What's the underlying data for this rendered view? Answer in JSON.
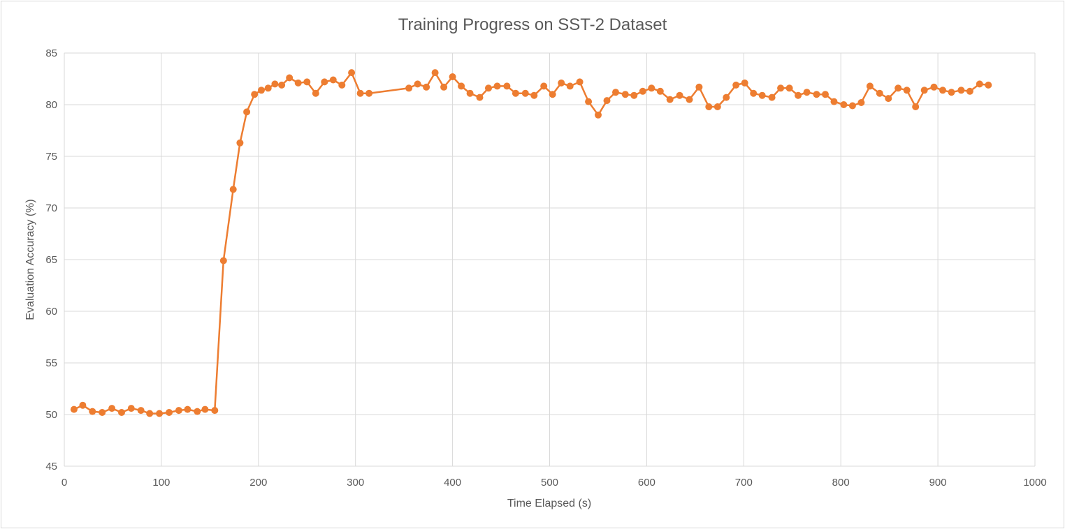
{
  "chart_data": {
    "type": "line",
    "title": "Training Progress on SST-2 Dataset",
    "xlabel": "Time Elapsed (s)",
    "ylabel": "Evaluation Accuracy (%)",
    "xlim": [
      0,
      1000
    ],
    "ylim": [
      45,
      85
    ],
    "xticks": [
      0,
      100,
      200,
      300,
      400,
      500,
      600,
      700,
      800,
      900,
      1000
    ],
    "yticks": [
      45,
      50,
      55,
      60,
      65,
      70,
      75,
      80,
      85
    ],
    "grid": true,
    "legend": "none",
    "colors": {
      "series": "#ed7d31",
      "grid": "#d9d9d9",
      "text": "#595959"
    },
    "series": [
      {
        "points": [
          [
            10,
            50.5
          ],
          [
            19,
            50.9
          ],
          [
            29,
            50.3
          ],
          [
            39,
            50.2
          ],
          [
            49,
            50.6
          ],
          [
            59,
            50.2
          ],
          [
            69,
            50.6
          ],
          [
            79,
            50.4
          ],
          [
            88,
            50.1
          ],
          [
            98,
            50.1
          ],
          [
            108,
            50.2
          ],
          [
            118,
            50.4
          ],
          [
            127,
            50.5
          ],
          [
            137,
            50.3
          ],
          [
            145,
            50.5
          ],
          [
            155,
            50.4
          ],
          [
            164,
            64.9
          ],
          [
            174,
            71.8
          ],
          [
            181,
            76.3
          ],
          [
            188,
            79.3
          ],
          [
            196,
            81.0
          ],
          [
            203,
            81.4
          ],
          [
            210,
            81.6
          ],
          [
            217,
            82.0
          ],
          [
            224,
            81.9
          ],
          [
            232,
            82.6
          ],
          [
            241,
            82.1
          ],
          [
            250,
            82.2
          ],
          [
            259,
            81.1
          ],
          [
            268,
            82.2
          ],
          [
            277,
            82.4
          ],
          [
            286,
            81.9
          ],
          [
            296,
            83.1
          ],
          [
            305,
            81.1
          ],
          [
            314,
            81.1
          ],
          [
            355,
            81.6
          ],
          [
            364,
            82.0
          ],
          [
            373,
            81.7
          ],
          [
            382,
            83.1
          ],
          [
            391,
            81.7
          ],
          [
            400,
            82.7
          ],
          [
            409,
            81.8
          ],
          [
            418,
            81.1
          ],
          [
            428,
            80.7
          ],
          [
            437,
            81.6
          ],
          [
            446,
            81.8
          ],
          [
            456,
            81.8
          ],
          [
            465,
            81.1
          ],
          [
            475,
            81.1
          ],
          [
            484,
            80.9
          ],
          [
            494,
            81.8
          ],
          [
            503,
            81.0
          ],
          [
            512,
            82.1
          ],
          [
            521,
            81.8
          ],
          [
            531,
            82.2
          ],
          [
            540,
            80.3
          ],
          [
            550,
            79.0
          ],
          [
            559,
            80.4
          ],
          [
            568,
            81.2
          ],
          [
            578,
            81.0
          ],
          [
            587,
            80.9
          ],
          [
            596,
            81.3
          ],
          [
            605,
            81.6
          ],
          [
            614,
            81.3
          ],
          [
            624,
            80.5
          ],
          [
            634,
            80.9
          ],
          [
            644,
            80.5
          ],
          [
            654,
            81.7
          ],
          [
            664,
            79.8
          ],
          [
            673,
            79.8
          ],
          [
            682,
            80.7
          ],
          [
            692,
            81.9
          ],
          [
            701,
            82.1
          ],
          [
            710,
            81.1
          ],
          [
            719,
            80.9
          ],
          [
            729,
            80.7
          ],
          [
            738,
            81.6
          ],
          [
            747,
            81.6
          ],
          [
            756,
            80.9
          ],
          [
            765,
            81.2
          ],
          [
            775,
            81.0
          ],
          [
            784,
            81.0
          ],
          [
            793,
            80.3
          ],
          [
            803,
            80.0
          ],
          [
            812,
            79.9
          ],
          [
            821,
            80.2
          ],
          [
            830,
            81.8
          ],
          [
            840,
            81.1
          ],
          [
            849,
            80.6
          ],
          [
            859,
            81.6
          ],
          [
            868,
            81.4
          ],
          [
            877,
            79.8
          ],
          [
            886,
            81.4
          ],
          [
            896,
            81.7
          ],
          [
            905,
            81.4
          ],
          [
            914,
            81.2
          ],
          [
            924,
            81.4
          ],
          [
            933,
            81.3
          ],
          [
            943,
            82.0
          ],
          [
            952,
            81.9
          ]
        ]
      }
    ]
  }
}
